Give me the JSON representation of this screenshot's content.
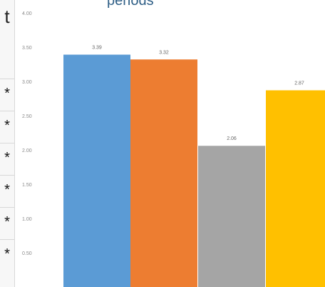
{
  "page": {
    "top_title": "periods",
    "left_panel_top_text": "t",
    "left_panel_stars": [
      "*",
      "*",
      "*",
      "*",
      "*",
      "*"
    ]
  },
  "chart_data": {
    "type": "bar",
    "categories": [
      "",
      "",
      "",
      ""
    ],
    "values": [
      3.39,
      3.32,
      2.06,
      2.87
    ],
    "value_labels": [
      "3.39",
      "3.32",
      "2.06",
      "2.87"
    ],
    "colors": [
      "#5B9BD5",
      "#ED7D31",
      "#A5A5A5",
      "#FFC000"
    ],
    "ylim": [
      0,
      4.0
    ],
    "y_ticks": [
      0.5,
      1.0,
      1.5,
      2.0,
      2.5,
      3.0,
      3.5,
      4.0
    ],
    "y_tick_labels": [
      "0.50",
      "1.00",
      "1.50",
      "2.00",
      "2.50",
      "3.00",
      "3.50",
      "4.00"
    ],
    "grid": false,
    "legend": "none"
  }
}
